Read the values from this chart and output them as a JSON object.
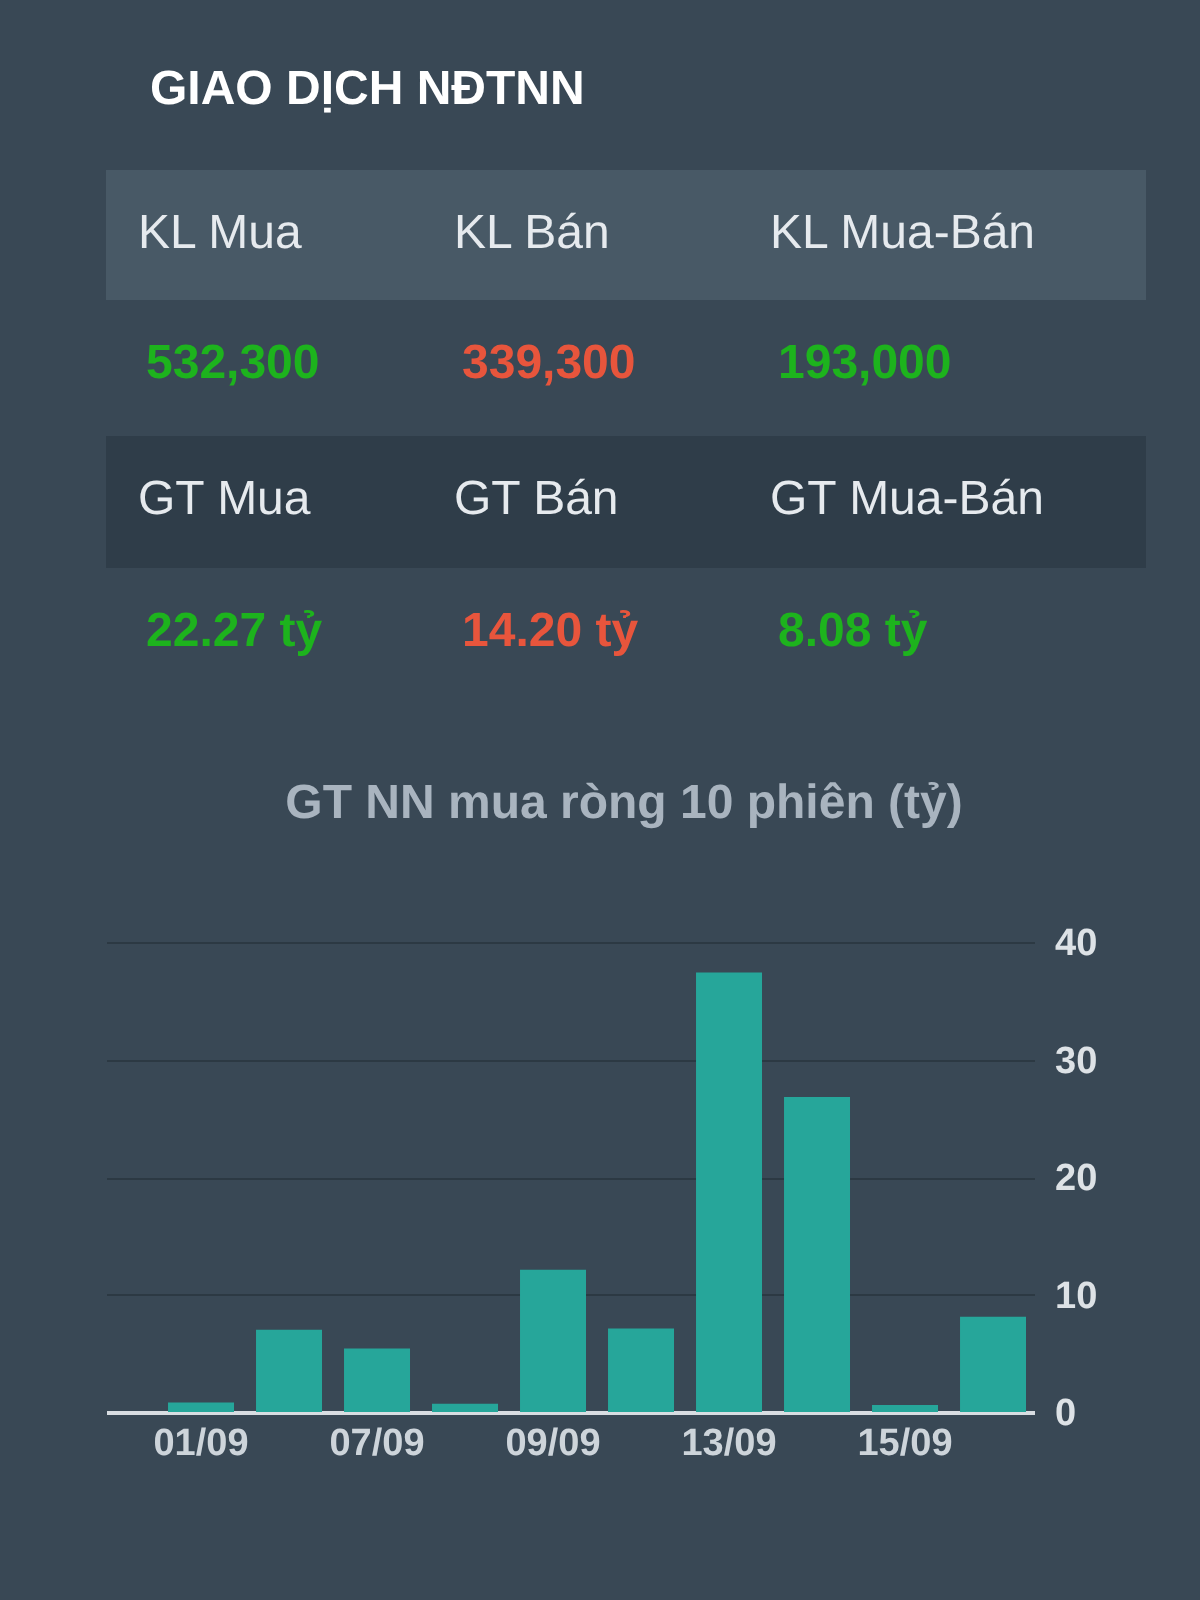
{
  "chart_data": [
    {
      "type": "other",
      "title": "GIAO DỊCH NĐTNN",
      "annotations": [
        "KL Mua",
        "KL Bán",
        "KL Mua-Bán",
        "532,300",
        "339,300",
        "193,000",
        "GT Mua",
        "GT Bán",
        "GT Mua-Bán",
        "22.27 tỷ",
        "14.20 tỷ",
        "8.08 tỷ"
      ],
      "colors": [
        "#e6eaee",
        "#e6eaee",
        "#e6eaee",
        "#1db31d",
        "#e8553c",
        "#1db31d",
        "#e6eaee",
        "#e6eaee",
        "#e6eaee",
        "#1db31d",
        "#e8553c",
        "#1db31d"
      ]
    },
    {
      "type": "bar",
      "title": "GT NN mua ròng 10 phiên (tỷ)",
      "categories": [
        "01/09",
        null,
        "07/09",
        null,
        "09/09",
        null,
        "13/09",
        null,
        "15/09",
        null
      ],
      "values": [
        0.8,
        7,
        5.4,
        0.7,
        12.1,
        7.1,
        37.4,
        26.8,
        0.6,
        8.1
      ],
      "color": "#26a69a",
      "ylim": [
        0,
        40
      ],
      "yticks": [
        0,
        10,
        20,
        30,
        40
      ],
      "grid": "y"
    }
  ]
}
